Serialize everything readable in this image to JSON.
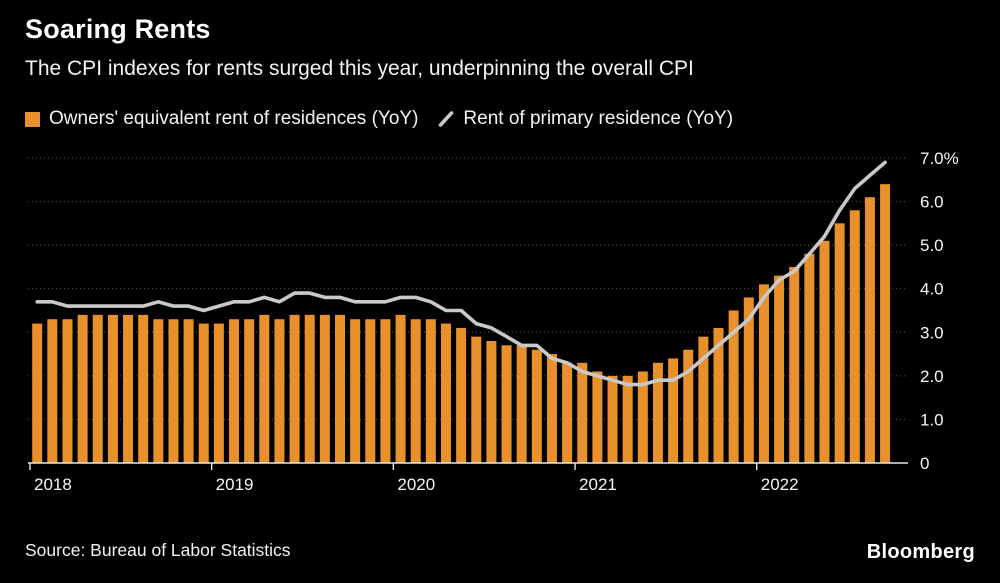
{
  "header": {
    "title": "Soaring Rents",
    "subtitle": "The CPI indexes for rents surged this year, underpinning the overall CPI"
  },
  "legend": [
    {
      "label": "Owners' equivalent rent of residences (YoY)",
      "swatch": "square",
      "color": "#E8912C"
    },
    {
      "label": "Rent of primary residence (YoY)",
      "swatch": "line",
      "color": "#C9C9C9"
    }
  ],
  "chart_data": {
    "type": "bar",
    "title": "Soaring Rents",
    "x_start": "2018-01",
    "x_end": "2022-09",
    "categories_years": [
      "2018",
      "2019",
      "2020",
      "2021",
      "2022"
    ],
    "ylim": [
      0,
      7
    ],
    "grid": "dotted-horizontal",
    "y_ticks": [
      {
        "v": 7,
        "label": "7.0%"
      },
      {
        "v": 6,
        "label": "6.0"
      },
      {
        "v": 5,
        "label": "5.0"
      },
      {
        "v": 4,
        "label": "4.0"
      },
      {
        "v": 3,
        "label": "3.0"
      },
      {
        "v": 2,
        "label": "2.0"
      },
      {
        "v": 1,
        "label": "1.0"
      },
      {
        "v": 0,
        "label": "0"
      }
    ],
    "series": [
      {
        "name": "Owners' equivalent rent of residences (YoY)",
        "type": "bar",
        "color": "#E8912C",
        "values": [
          3.2,
          3.3,
          3.3,
          3.4,
          3.4,
          3.4,
          3.4,
          3.4,
          3.3,
          3.3,
          3.3,
          3.2,
          3.2,
          3.3,
          3.3,
          3.4,
          3.3,
          3.4,
          3.4,
          3.4,
          3.4,
          3.3,
          3.3,
          3.3,
          3.4,
          3.3,
          3.3,
          3.2,
          3.1,
          2.9,
          2.8,
          2.7,
          2.7,
          2.6,
          2.5,
          2.3,
          2.3,
          2.1,
          2.0,
          2.0,
          2.1,
          2.3,
          2.4,
          2.6,
          2.9,
          3.1,
          3.5,
          3.8,
          4.1,
          4.3,
          4.5,
          4.8,
          5.1,
          5.5,
          5.8,
          6.1,
          6.4
        ]
      },
      {
        "name": "Rent of primary residence (YoY)",
        "type": "line",
        "color": "#C9C9C9",
        "values": [
          3.7,
          3.7,
          3.6,
          3.6,
          3.6,
          3.6,
          3.6,
          3.6,
          3.7,
          3.6,
          3.6,
          3.5,
          3.6,
          3.7,
          3.7,
          3.8,
          3.7,
          3.9,
          3.9,
          3.8,
          3.8,
          3.7,
          3.7,
          3.7,
          3.8,
          3.8,
          3.7,
          3.5,
          3.5,
          3.2,
          3.1,
          2.9,
          2.7,
          2.7,
          2.4,
          2.3,
          2.1,
          2.0,
          1.9,
          1.8,
          1.8,
          1.9,
          1.9,
          2.1,
          2.4,
          2.7,
          3.0,
          3.3,
          3.8,
          4.2,
          4.4,
          4.8,
          5.2,
          5.8,
          6.3,
          6.6,
          6.9
        ]
      }
    ],
    "colors": {
      "grid": "#585858",
      "axis": "#e8e8e8",
      "text": "#f5f5f5",
      "background": "#000000"
    }
  },
  "footer": {
    "source": "Source: Bureau of Labor Statistics",
    "brand": "Bloomberg"
  }
}
